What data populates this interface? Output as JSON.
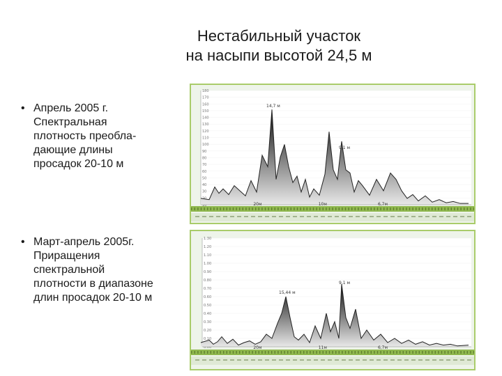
{
  "title": {
    "line1": "Нестабильный участок",
    "line2": "на насыпи высотой 24,5 м"
  },
  "bullets": [
    {
      "marker": "•",
      "lines": [
        "Апрель 2005 г.",
        "Спектральная",
        "плотность преобла-",
        "дающие длины",
        "просадок 20-10 м"
      ]
    },
    {
      "marker": "•",
      "lines": [
        "Март-апрель 2005г.",
        "Приращения",
        "спектральной",
        "плотности в диапазоне",
        "длин просадок 20-10 м"
      ]
    }
  ],
  "colors": {
    "panel_border": "#a9cc6a",
    "panel_bg": "#eef4ea",
    "scale_bar": "#8fb84e"
  },
  "chart_data": [
    {
      "type": "area",
      "y_ticks": [
        "180",
        "170",
        "160",
        "150",
        "140",
        "130",
        "120",
        "110",
        "100",
        "90",
        "80",
        "70",
        "60",
        "50",
        "40",
        "30",
        "20",
        "10"
      ],
      "x_labels": [
        "20м",
        "10м",
        "6,7м"
      ],
      "peak_labels": [
        "14,7 м",
        "9,1 м"
      ],
      "peak_label_x": [
        390,
        494
      ],
      "ylim": [
        0,
        180
      ],
      "x": [
        288,
        300,
        308,
        314,
        320,
        328,
        336,
        344,
        352,
        360,
        368,
        376,
        384,
        390,
        396,
        402,
        408,
        414,
        420,
        426,
        432,
        438,
        444,
        450,
        458,
        466,
        472,
        478,
        484,
        490,
        496,
        502,
        508,
        514,
        520,
        530,
        540,
        550,
        560,
        568,
        576,
        584,
        592,
        600,
        610,
        620,
        630,
        640,
        650,
        660,
        672
      ],
      "y": [
        10,
        8,
        28,
        18,
        25,
        16,
        30,
        22,
        14,
        38,
        20,
        78,
        60,
        150,
        40,
        75,
        95,
        60,
        35,
        45,
        20,
        40,
        12,
        25,
        15,
        48,
        115,
        55,
        40,
        100,
        55,
        50,
        20,
        38,
        30,
        15,
        40,
        22,
        50,
        40,
        22,
        10,
        16,
        6,
        14,
        4,
        8,
        3,
        5,
        2,
        2
      ]
    },
    {
      "type": "area",
      "y_ticks": [
        "1.30",
        "1.20",
        "1.10",
        "1.00",
        "0.90",
        "0.80",
        "0.70",
        "0.60",
        "0.50",
        "0.40",
        "0.30",
        "0.20",
        "0.10",
        "0.00"
      ],
      "x_labels": [
        "20м",
        "11м",
        "6,7м"
      ],
      "peak_labels": [
        "15,44 м",
        "9,1 м"
      ],
      "peak_label_x": [
        408,
        494
      ],
      "ylim": [
        0,
        1.3
      ],
      "x": [
        288,
        300,
        306,
        312,
        318,
        326,
        334,
        342,
        350,
        358,
        366,
        374,
        382,
        390,
        398,
        404,
        410,
        416,
        422,
        428,
        436,
        444,
        452,
        460,
        468,
        474,
        480,
        486,
        490,
        496,
        502,
        510,
        518,
        526,
        536,
        546,
        556,
        566,
        576,
        586,
        596,
        606,
        616,
        626,
        636,
        646,
        656,
        672
      ],
      "y": [
        0.05,
        0.08,
        0.03,
        0.06,
        0.12,
        0.04,
        0.09,
        0.02,
        0.05,
        0.07,
        0.03,
        0.06,
        0.15,
        0.1,
        0.28,
        0.4,
        0.6,
        0.35,
        0.12,
        0.08,
        0.15,
        0.05,
        0.25,
        0.1,
        0.4,
        0.18,
        0.3,
        0.1,
        0.75,
        0.35,
        0.22,
        0.45,
        0.1,
        0.2,
        0.08,
        0.15,
        0.05,
        0.1,
        0.04,
        0.08,
        0.03,
        0.06,
        0.02,
        0.04,
        0.02,
        0.03,
        0.01,
        0.02
      ]
    }
  ]
}
